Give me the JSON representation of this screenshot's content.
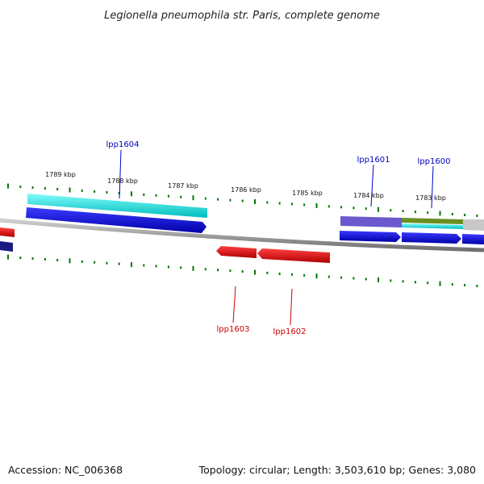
{
  "title": "Legionella pneumophila str. Paris, complete genome",
  "footer": {
    "accession": "Accession: NC_006368",
    "topology": "Topology: circular; Length: 3,503,610 bp; Genes: 3,080"
  },
  "ticks": [
    "1789 kbp",
    "1788 kbp",
    "1787 kbp",
    "1786 kbp",
    "1785 kbp",
    "1784 kbp",
    "1783 kbp"
  ],
  "gene_labels": {
    "forward": [
      "lpp1604",
      "lpp1601",
      "lpp1600"
    ],
    "reverse": [
      "lpp1603",
      "lpp1602"
    ]
  },
  "colors": {
    "forward_strand": "#0000ee",
    "reverse_strand": "#ee0000",
    "backbone": "#888888",
    "tick": "#007700",
    "cyan_feature": "#00e5e5",
    "purple_feature": "#6a5acd",
    "olive_feature": "#6b8e23"
  }
}
